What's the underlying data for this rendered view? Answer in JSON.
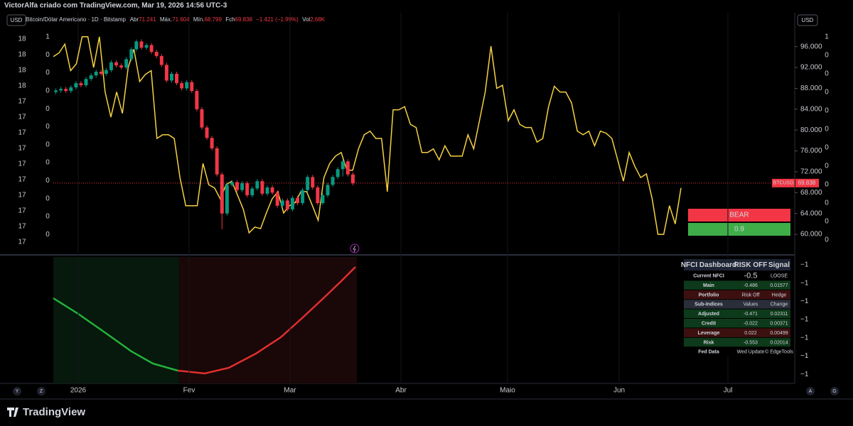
{
  "header": {
    "attribution": "VictorAlfa criado com TradingView.com, Mar 19, 2026 14:56 UTC-3"
  },
  "currency": "USD",
  "legend": {
    "symbol": "Bitcoin/Dólar Americano · 1D · Bitstamp",
    "open_label": "Abr",
    "open": "71.241",
    "high_label": "Máx.",
    "high": "71.604",
    "low_label": "Mín.",
    "low": "68.799",
    "close_label": "Fch",
    "close": "69.838",
    "change": "−1.421 (−1.99%)",
    "volume_label": "Vol",
    "volume": "2,68K"
  },
  "chart_data": {
    "type": "candlestick",
    "open": [
      87300,
      87600,
      87900,
      87500,
      88200,
      89000,
      88600,
      89800,
      90500,
      91200,
      90800,
      91500,
      93000,
      92400,
      92000,
      93600,
      95500,
      97000,
      95800,
      96300,
      95000,
      94200,
      92500,
      89500,
      90800,
      89000,
      88000,
      89200,
      87500,
      84000,
      80500,
      78500,
      76500,
      71500,
      64000,
      69500,
      70000,
      68500,
      69800,
      67500,
      68800,
      70200,
      67800,
      69000,
      68000,
      65500,
      66500,
      64800,
      67000,
      66000,
      68500,
      71000,
      69000,
      66000,
      67500,
      69500,
      71000,
      72500,
      74000,
      71500
    ],
    "high": [
      88000,
      88300,
      88300,
      88600,
      89400,
      89400,
      90200,
      90900,
      91600,
      91600,
      91900,
      93400,
      93400,
      92800,
      94000,
      95900,
      97400,
      97400,
      96700,
      96700,
      95400,
      94600,
      92900,
      91200,
      91200,
      89400,
      89600,
      89600,
      87900,
      84400,
      80900,
      78900,
      76900,
      71900,
      70000,
      70400,
      70400,
      70200,
      70200,
      69200,
      70600,
      70600,
      69400,
      69400,
      68400,
      66900,
      66900,
      67400,
      67400,
      68900,
      71400,
      71400,
      69400,
      67900,
      69900,
      71400,
      72900,
      74400,
      74400,
      71900
    ],
    "low": [
      86900,
      87200,
      87100,
      87100,
      87800,
      88200,
      88200,
      89400,
      90100,
      90400,
      90400,
      91100,
      92000,
      91600,
      91600,
      93200,
      95100,
      95400,
      95400,
      94600,
      93800,
      92100,
      89100,
      89100,
      88600,
      87600,
      87600,
      87100,
      83600,
      80100,
      78100,
      76100,
      71100,
      61000,
      63600,
      69100,
      68100,
      68100,
      67100,
      67100,
      68400,
      67400,
      67400,
      67600,
      65100,
      65100,
      64400,
      64400,
      65600,
      65600,
      68100,
      68600,
      65600,
      65600,
      67100,
      69100,
      70600,
      71100,
      71100,
      69400
    ],
    "close": [
      87600,
      87900,
      87500,
      88200,
      89000,
      88600,
      89800,
      90500,
      91200,
      90800,
      91500,
      93000,
      92400,
      92000,
      93600,
      95500,
      97000,
      95800,
      96300,
      95000,
      94200,
      92500,
      89500,
      90800,
      89000,
      88000,
      89200,
      87500,
      84000,
      80500,
      78500,
      76500,
      71500,
      64000,
      69500,
      70000,
      68500,
      69800,
      67500,
      68800,
      70200,
      67800,
      69000,
      68000,
      65500,
      66500,
      64800,
      67000,
      66000,
      68500,
      71000,
      69000,
      66000,
      67500,
      69500,
      71000,
      72500,
      74000,
      71500,
      69800
    ],
    "colors": {
      "up": "#089981",
      "down": "#f23645"
    },
    "overlay": {
      "color": "#f5d142",
      "values": [
        94100,
        94800,
        96500,
        91400,
        92700,
        97900,
        97900,
        92000,
        97900,
        87300,
        82500,
        87300,
        83200,
        92000,
        95500,
        89300,
        90700,
        91400,
        78400,
        79100,
        79100,
        78400,
        70900,
        65500,
        65500,
        65500,
        73600,
        69500,
        68900,
        66800,
        69500,
        70200,
        67500,
        64800,
        60300,
        61400,
        61100,
        64100,
        66800,
        68200,
        64100,
        65500,
        66100,
        68200,
        68200,
        65500,
        62700,
        70900,
        73600,
        75000,
        75700,
        72300,
        72300,
        76400,
        79100,
        79800,
        78400,
        78400,
        68200,
        83900,
        83900,
        84500,
        81100,
        80500,
        75700,
        75700,
        76400,
        74300,
        77000,
        75000,
        75000,
        75000,
        79100,
        76400,
        81800,
        87300,
        96100,
        88000,
        88600,
        81800,
        83900,
        81100,
        80500,
        80500,
        77700,
        78400,
        84500,
        88400,
        87300,
        87300,
        85200,
        79800,
        79100,
        79800,
        77000,
        79800,
        79400,
        78400,
        74300,
        70200,
        75700,
        73000,
        70900,
        71600,
        66800,
        60000,
        60000,
        65500,
        62000,
        68900
      ]
    },
    "ylim": [
      56200,
      102500
    ],
    "yticks": [
      {
        "value": 60000,
        "label": "60.000"
      },
      {
        "value": 64000,
        "label": "64.000"
      },
      {
        "value": 68000,
        "label": "68.000"
      },
      {
        "value": 72000,
        "label": "72.000"
      },
      {
        "value": 76000,
        "label": "76.000"
      },
      {
        "value": 80000,
        "label": "80.000"
      },
      {
        "value": 84000,
        "label": "84.000"
      },
      {
        "value": 88000,
        "label": "88.000"
      },
      {
        "value": 92000,
        "label": "92.000"
      },
      {
        "value": 96000,
        "label": "96.000"
      }
    ],
    "last_price": {
      "value": 69838,
      "label": "69.838",
      "symbol": "BTCUSD"
    }
  },
  "signal_box": {
    "state": "BEAR",
    "score": "0.9"
  },
  "left_axis": {
    "outer": [
      "18",
      "18",
      "18",
      "18",
      "17",
      "17",
      "17",
      "17",
      "17",
      "17",
      "17",
      "17",
      "17",
      "17"
    ],
    "inner": [
      "1",
      "0",
      "0",
      "0",
      "0",
      "0",
      "0",
      "0",
      "0",
      "0",
      "0",
      "0"
    ]
  },
  "right_inner_axis": [
    "1",
    "0",
    "0",
    "0",
    "0",
    "0",
    "0",
    "0",
    "0",
    "0",
    "0",
    "0"
  ],
  "lower_axis": [
    "−1",
    "−1",
    "−1",
    "−1",
    "−1",
    "−1",
    "−1"
  ],
  "time_axis": [
    "2026",
    "Fev",
    "Mar",
    "Abr",
    "Maio",
    "Jun",
    "Jul"
  ],
  "dashboard": {
    "rows": [
      [
        "NFCI Dashboard",
        "RISK OFF",
        "Signal"
      ],
      [
        "Current NFCI",
        "-0.5",
        "LOOSE"
      ],
      [
        "Main",
        "-0.486",
        "0.01577"
      ],
      [
        "Portfolio",
        "Risk Off",
        "Hedge"
      ],
      [
        "Sub-Indices",
        "Values",
        "Change"
      ],
      [
        "Adjusted",
        "-0.471",
        "0.02311"
      ],
      [
        "Credit",
        "-0.022",
        "0.00371"
      ],
      [
        "Leverage",
        "0.022",
        "0.00499"
      ],
      [
        "Risk",
        "-0.553",
        "0.02014"
      ],
      [
        "Fed Data",
        "Wed Update",
        "© EdgeTools"
      ]
    ]
  },
  "corner_buttons": [
    "Y",
    "Z",
    "A",
    "G"
  ],
  "footer_brand": "TradingView"
}
